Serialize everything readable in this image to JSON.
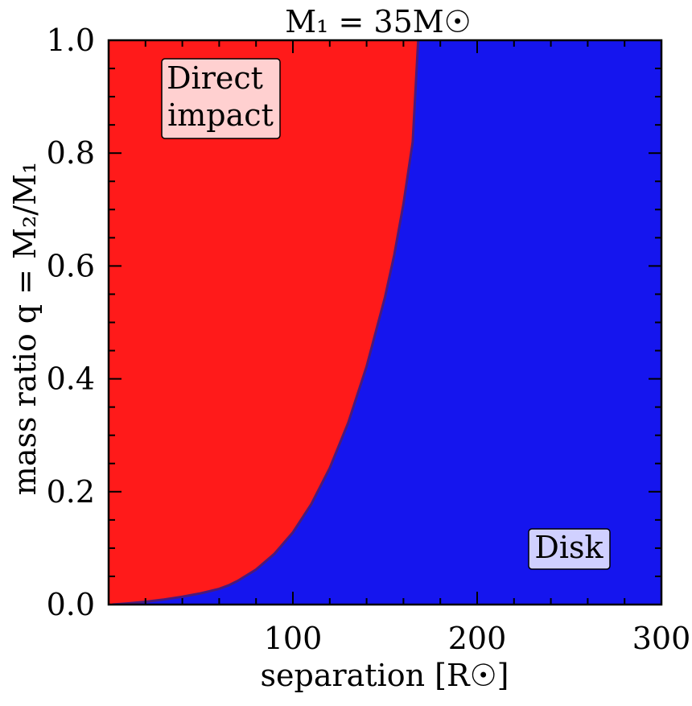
{
  "chart_data": {
    "type": "area",
    "title": "M₁ = 35M☉",
    "xlabel": "separation [R☉]",
    "ylabel": "mass ratio q = M₂/M₁",
    "xlim": [
      0,
      300
    ],
    "ylim": [
      0,
      1.0
    ],
    "xticks": [
      100,
      200,
      300
    ],
    "xtick_labels": [
      "100",
      "200",
      "300"
    ],
    "yticks": [
      0.0,
      0.2,
      0.4,
      0.6,
      0.8,
      1.0
    ],
    "ytick_labels": [
      "0.0",
      "0.2",
      "0.4",
      "0.6",
      "0.8",
      "1.0"
    ],
    "x_minor_step": 20,
    "y_minor_step": 0.05,
    "grid": false,
    "colors": {
      "direct_impact": "#ff1a1a",
      "disk": "#1515ee",
      "boundary": "#4a1a7a",
      "annotation_bg_direct": "#ffd0d0",
      "annotation_bg_disk": "#d0d0ff"
    },
    "boundary": {
      "x": [
        2,
        10,
        20,
        30,
        40,
        50,
        60,
        65,
        70,
        80,
        90,
        100,
        110,
        120,
        130,
        140,
        150,
        155,
        160,
        165,
        168
      ],
      "y": [
        0.0,
        0.002,
        0.005,
        0.009,
        0.014,
        0.02,
        0.028,
        0.034,
        0.042,
        0.062,
        0.09,
        0.128,
        0.178,
        0.242,
        0.322,
        0.422,
        0.545,
        0.62,
        0.71,
        0.82,
        1.0
      ]
    },
    "annotations": [
      {
        "label_lines": [
          "Direct",
          "impact"
        ],
        "region": "direct_impact"
      },
      {
        "label_lines": [
          "Disk"
        ],
        "region": "disk"
      }
    ]
  }
}
